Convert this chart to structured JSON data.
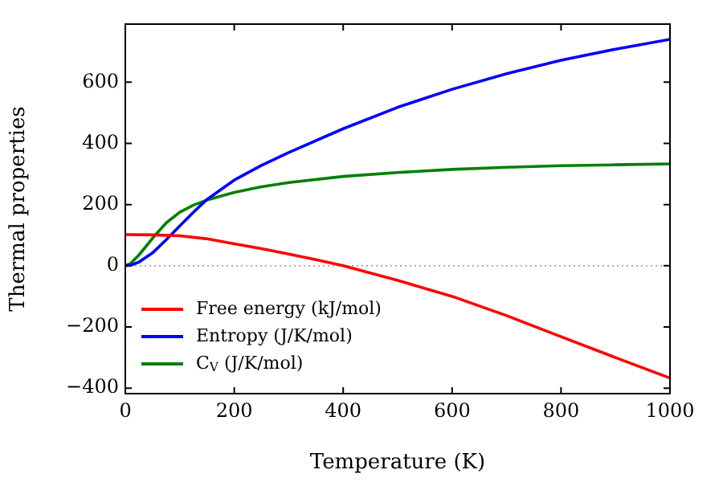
{
  "chart_data": {
    "type": "line",
    "xlabel": "Temperature (K)",
    "ylabel": "Thermal properties",
    "xlim": [
      0,
      1000
    ],
    "xticks": [
      0,
      200,
      400,
      600,
      800,
      1000
    ],
    "ylim": [
      -418,
      790
    ],
    "yticks": [
      -400,
      -200,
      0,
      200,
      400,
      600
    ],
    "legend": "bottom left",
    "grid": false,
    "marker": "none",
    "line_style": "solid",
    "ref_lines": [
      {
        "axis": "y",
        "value": 0,
        "color": "#808080",
        "line_style": "dotted"
      }
    ],
    "series": [
      {
        "name": "Free energy (kJ/mol)",
        "color": "#ff0000",
        "x": [
          0,
          50,
          100,
          150,
          200,
          250,
          300,
          350,
          400,
          500,
          600,
          700,
          800,
          900,
          1000
        ],
        "values": [
          102,
          101,
          98,
          88,
          72,
          56,
          38,
          20,
          0,
          -48,
          -100,
          -163,
          -232,
          -300,
          -367
        ]
      },
      {
        "name": "Entropy (J/K/mol)",
        "color": "#0000ff",
        "x": [
          0,
          10,
          25,
          50,
          75,
          100,
          125,
          150,
          200,
          250,
          300,
          400,
          500,
          600,
          700,
          800,
          900,
          1000
        ],
        "values": [
          0,
          2,
          12,
          42,
          85,
          130,
          175,
          217,
          280,
          328,
          370,
          448,
          518,
          577,
          628,
          672,
          708,
          740
        ]
      },
      {
        "name": "C$_{V}$ (J/K/mol)",
        "color": "#008000",
        "x": [
          0,
          10,
          25,
          50,
          75,
          100,
          125,
          150,
          200,
          250,
          300,
          400,
          500,
          600,
          700,
          800,
          900,
          1000
        ],
        "values": [
          0,
          8,
          35,
          90,
          140,
          175,
          198,
          215,
          240,
          258,
          272,
          292,
          305,
          315,
          322,
          327,
          330,
          333
        ]
      }
    ]
  }
}
